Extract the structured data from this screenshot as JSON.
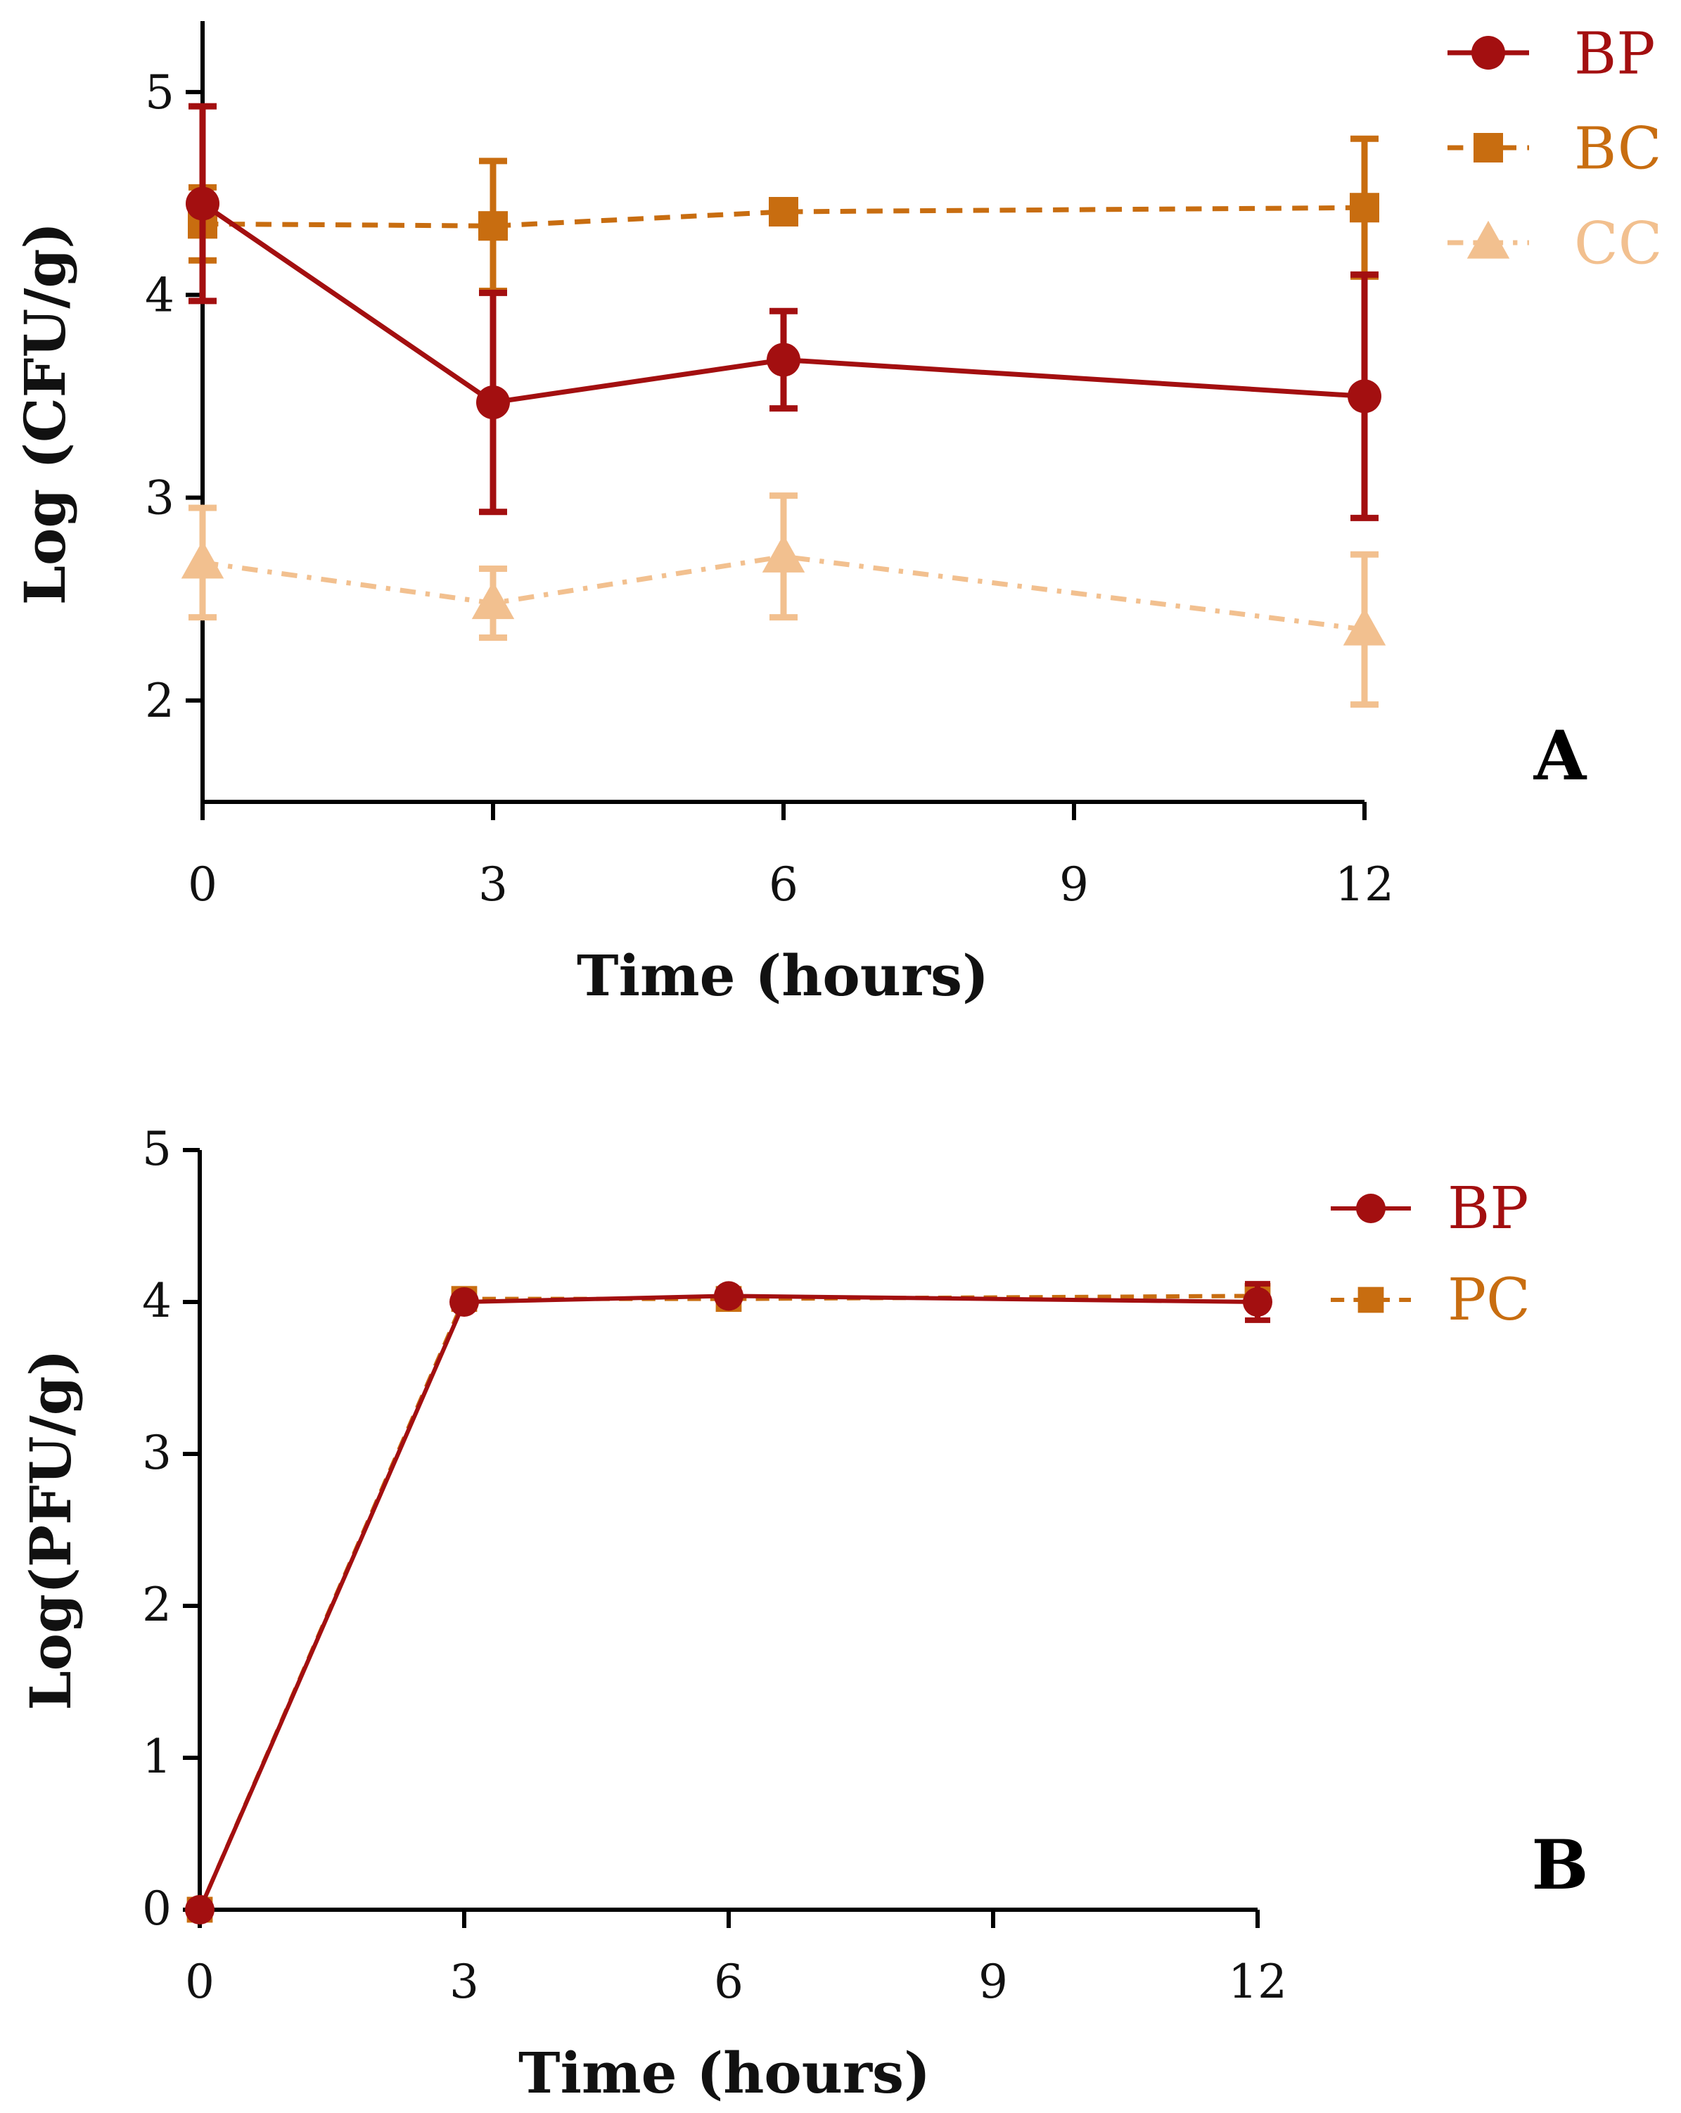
{
  "colors": {
    "BP": "#a30f10",
    "BC": "#c86d10",
    "CC": "#f2c08f",
    "PC": "#c86d10",
    "axis": "#000000"
  },
  "chart_data": [
    {
      "type": "line",
      "panel_letter": "A",
      "xlabel": "Time (hours)",
      "ylabel": "Log (CFU/g)",
      "x_ticks": [
        0,
        3,
        6,
        9,
        12
      ],
      "y_ticks": [
        2,
        3,
        4,
        5
      ],
      "xlim": [
        0,
        12
      ],
      "ylim": [
        1.5,
        5.35
      ],
      "legend_position": "top-right",
      "series": [
        {
          "name": "BP",
          "marker": "circle",
          "dash": "solid",
          "x": [
            0,
            3,
            6,
            12
          ],
          "y": [
            4.45,
            3.47,
            3.68,
            3.5
          ],
          "err": [
            0.48,
            0.54,
            0.24,
            0.6
          ]
        },
        {
          "name": "BC",
          "marker": "square",
          "dash": "dashed",
          "x": [
            0,
            3,
            6,
            12
          ],
          "y": [
            4.35,
            4.34,
            4.41,
            4.43
          ],
          "err": [
            0.18,
            0.32,
            0.0,
            0.34
          ]
        },
        {
          "name": "CC",
          "marker": "triangle",
          "dash": "dashdot",
          "x": [
            0,
            3,
            6,
            12
          ],
          "y": [
            2.68,
            2.48,
            2.71,
            2.35
          ],
          "err": [
            0.27,
            0.17,
            0.3,
            0.37
          ]
        }
      ]
    },
    {
      "type": "line",
      "panel_letter": "B",
      "xlabel": "Time (hours)",
      "ylabel": "Log(PFU/g)",
      "x_ticks": [
        0,
        3,
        6,
        9,
        12
      ],
      "y_ticks": [
        0,
        1,
        2,
        3,
        4,
        5
      ],
      "xlim": [
        0,
        12
      ],
      "ylim": [
        0,
        5
      ],
      "legend_position": "top-right",
      "series": [
        {
          "name": "BP",
          "marker": "circle",
          "dash": "solid",
          "x": [
            0,
            3,
            6,
            12
          ],
          "y": [
            0,
            4.0,
            4.04,
            4.0
          ],
          "err": [
            0,
            0.03,
            0.03,
            0.12
          ]
        },
        {
          "name": "PC",
          "marker": "square",
          "dash": "dashed",
          "x": [
            0,
            3,
            6,
            12
          ],
          "y": [
            0,
            4.02,
            4.02,
            4.04
          ],
          "err": [
            0,
            0.05,
            0.02,
            0.07
          ]
        }
      ]
    }
  ]
}
